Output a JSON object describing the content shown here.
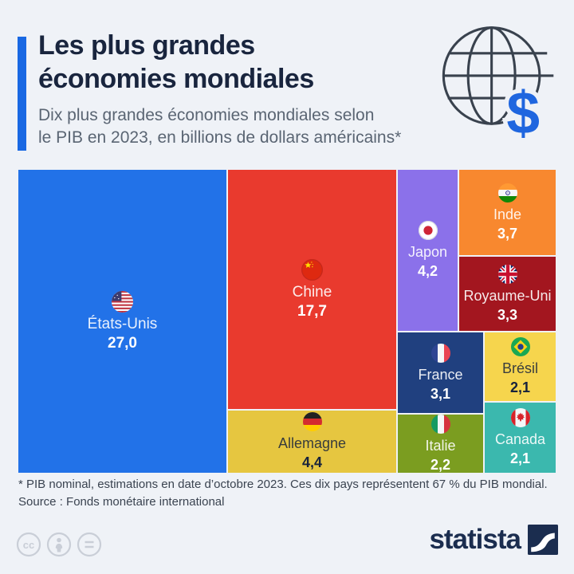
{
  "header": {
    "title_line1": "Les plus grandes",
    "title_line2": "économies mondiales",
    "subtitle_line1": "Dix plus grandes économies mondiales selon",
    "subtitle_line2": "le PIB en 2023, en billions de dollars américains*",
    "globe_icon": "globe-dollar-icon"
  },
  "colors": {
    "background": "#EFF2F7",
    "accent_blue": "#1968E3",
    "title_navy": "#19253E",
    "subtitle_gray": "#5A6573",
    "footnote_gray": "#3A4350",
    "brand_navy": "#1B2D4F",
    "license_gray": "#C9CED7"
  },
  "chart_data": {
    "type": "treemap",
    "title": "Les plus grandes économies mondiales",
    "subtitle": "Dix plus grandes économies mondiales selon le PIB en 2023, en billions de dollars américains*",
    "unit": "billions de dollars américains",
    "items": [
      {
        "code": "us",
        "label": "États-Unis",
        "value": "27,0",
        "value_numeric": 27.0,
        "color": "#2272E8",
        "flag_icon": "flag-us-icon"
      },
      {
        "code": "cn",
        "label": "Chine",
        "value": "17,7",
        "value_numeric": 17.7,
        "color": "#E93A2E",
        "flag_icon": "flag-cn-icon"
      },
      {
        "code": "de",
        "label": "Allemagne",
        "value": "4,4",
        "value_numeric": 4.4,
        "color": "#E6C640",
        "flag_icon": "flag-de-icon"
      },
      {
        "code": "jp",
        "label": "Japon",
        "value": "4,2",
        "value_numeric": 4.2,
        "color": "#8B71EA",
        "flag_icon": "flag-jp-icon"
      },
      {
        "code": "in",
        "label": "Inde",
        "value": "3,7",
        "value_numeric": 3.7,
        "color": "#F8882F",
        "flag_icon": "flag-in-icon"
      },
      {
        "code": "gb",
        "label": "Royaume-Uni",
        "value": "3,3",
        "value_numeric": 3.3,
        "color": "#A3161F",
        "flag_icon": "flag-gb-icon"
      },
      {
        "code": "fr",
        "label": "France",
        "value": "3,1",
        "value_numeric": 3.1,
        "color": "#20407F",
        "flag_icon": "flag-fr-icon"
      },
      {
        "code": "it",
        "label": "Italie",
        "value": "2,2",
        "value_numeric": 2.2,
        "color": "#7B9D20",
        "flag_icon": "flag-it-icon"
      },
      {
        "code": "br",
        "label": "Brésil",
        "value": "2,1",
        "value_numeric": 2.1,
        "color": "#F6D54D",
        "flag_icon": "flag-br-icon"
      },
      {
        "code": "ca",
        "label": "Canada",
        "value": "2,1",
        "value_numeric": 2.1,
        "color": "#3BB8AE",
        "flag_icon": "flag-ca-icon"
      }
    ]
  },
  "footer": {
    "footnote": "* PIB nominal, estimations en date d’octobre 2023. Ces dix pays représentent 67 % du PIB mondial.",
    "source": "Source : Fonds monétaire international",
    "license_icons": [
      "cc-icon",
      "attribution-icon",
      "equals-icon"
    ],
    "brand": "statista"
  }
}
